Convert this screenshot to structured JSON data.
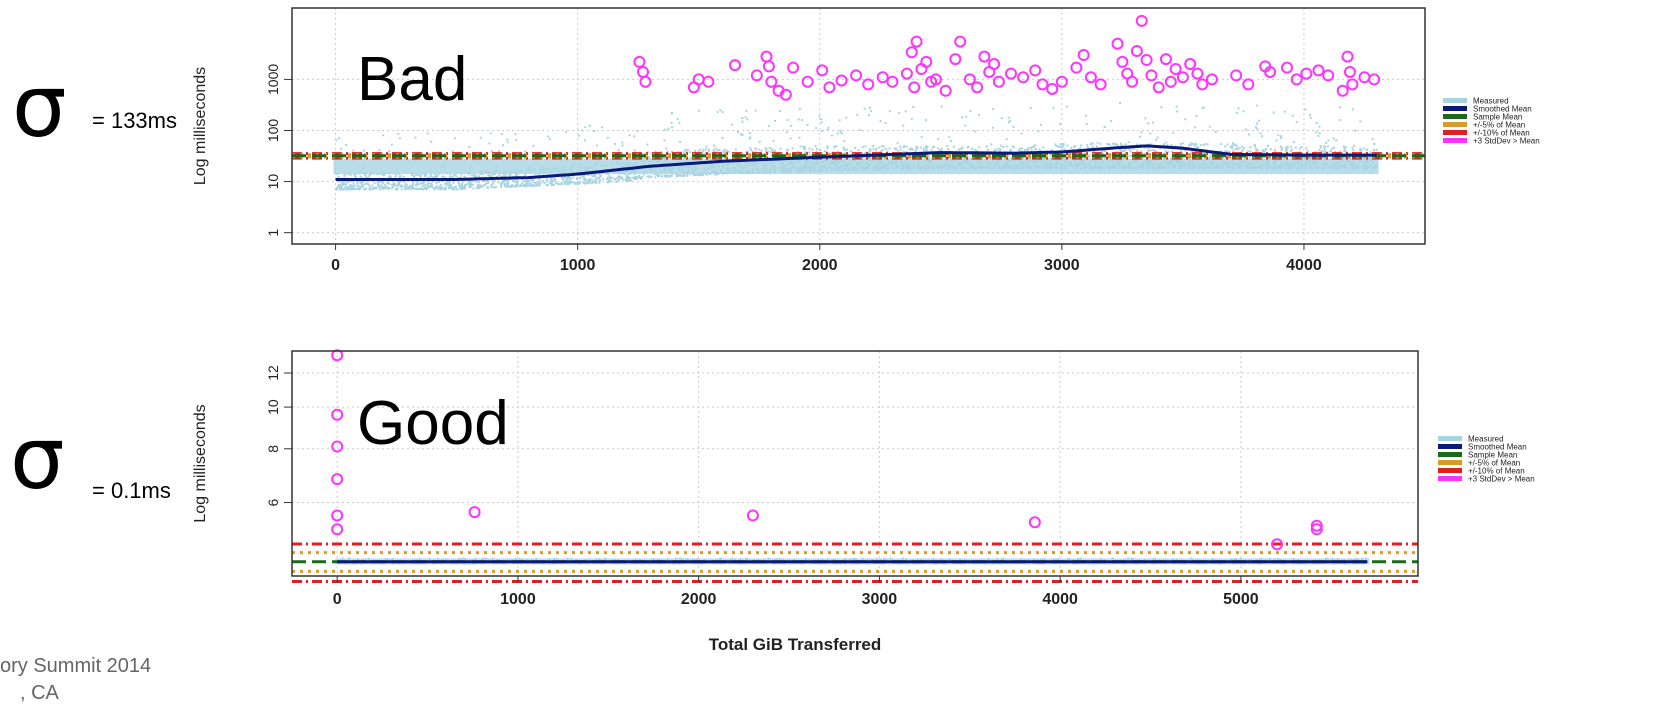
{
  "annotations": {
    "sigma_symbol": "σ",
    "bad_sigma": "= 133ms",
    "good_sigma": "= 0.1ms",
    "footer_line1": "ory Summit 2014",
    "footer_line2": ", CA"
  },
  "colors": {
    "measured": "#a8d4e2",
    "smoothed": "#0a1a7a",
    "sample": "#1a6a1a",
    "pm5": "#d89a2a",
    "pm10": "#e02020",
    "outlier": "#ff33ff"
  },
  "legend": [
    {
      "label": "Measured",
      "key": "measured"
    },
    {
      "label": "Smoothed Mean",
      "key": "smoothed"
    },
    {
      "label": "Sample Mean",
      "key": "sample"
    },
    {
      "label": "+/-5% of Mean",
      "key": "pm5"
    },
    {
      "label": "+/-10% of Mean",
      "key": "pm10"
    },
    {
      "label": "+3 StdDev > Mean",
      "key": "outlier"
    }
  ],
  "chart_data": [
    {
      "type": "scatter",
      "title": "Bad",
      "ylabel": "Log milliseconds",
      "xlabel": "",
      "yscale": "log",
      "grid": true,
      "legend_position": "right",
      "xlim": [
        -180,
        4500
      ],
      "ylim": [
        0.6,
        25000
      ],
      "x_ticks": [
        "0",
        "1000",
        "2000",
        "3000",
        "4000"
      ],
      "y_ticks": [
        "1",
        "10",
        "100",
        "1000"
      ],
      "sample_mean": 32,
      "smoothed_mean": {
        "x": [
          0,
          500,
          800,
          1000,
          1300,
          1600,
          2000,
          2300,
          2500,
          2800,
          3000,
          3200,
          3350,
          3500,
          3700,
          4000,
          4300
        ],
        "y": [
          11,
          11,
          12,
          14,
          20,
          25,
          30,
          34,
          37,
          36,
          38,
          45,
          50,
          45,
          34,
          33,
          33
        ]
      },
      "measured_band": {
        "x": [
          0,
          500,
          1000,
          1200,
          1300,
          1600,
          2000,
          2500,
          3000,
          3300,
          3600,
          4000,
          4300
        ],
        "low": [
          7,
          7,
          9,
          10,
          12,
          14,
          16,
          18,
          18,
          18,
          18,
          18,
          18
        ],
        "high": [
          15,
          15,
          20,
          25,
          40,
          45,
          50,
          50,
          55,
          60,
          55,
          50,
          50
        ]
      },
      "outliers": [
        {
          "x": 1255,
          "y": 2200
        },
        {
          "x": 1270,
          "y": 1400
        },
        {
          "x": 1280,
          "y": 900
        },
        {
          "x": 1480,
          "y": 700
        },
        {
          "x": 1500,
          "y": 1000
        },
        {
          "x": 1540,
          "y": 900
        },
        {
          "x": 1650,
          "y": 1900
        },
        {
          "x": 1740,
          "y": 1200
        },
        {
          "x": 1780,
          "y": 2800
        },
        {
          "x": 1790,
          "y": 1800
        },
        {
          "x": 1800,
          "y": 900
        },
        {
          "x": 1830,
          "y": 600
        },
        {
          "x": 1860,
          "y": 500
        },
        {
          "x": 1890,
          "y": 1700
        },
        {
          "x": 1950,
          "y": 900
        },
        {
          "x": 2010,
          "y": 1500
        },
        {
          "x": 2040,
          "y": 700
        },
        {
          "x": 2090,
          "y": 950
        },
        {
          "x": 2150,
          "y": 1200
        },
        {
          "x": 2200,
          "y": 800
        },
        {
          "x": 2260,
          "y": 1100
        },
        {
          "x": 2300,
          "y": 900
        },
        {
          "x": 2360,
          "y": 1300
        },
        {
          "x": 2380,
          "y": 3400
        },
        {
          "x": 2390,
          "y": 700
        },
        {
          "x": 2400,
          "y": 5500
        },
        {
          "x": 2420,
          "y": 1600
        },
        {
          "x": 2440,
          "y": 2200
        },
        {
          "x": 2460,
          "y": 900
        },
        {
          "x": 2480,
          "y": 1000
        },
        {
          "x": 2520,
          "y": 600
        },
        {
          "x": 2560,
          "y": 2500
        },
        {
          "x": 2580,
          "y": 5500
        },
        {
          "x": 2620,
          "y": 1000
        },
        {
          "x": 2650,
          "y": 700
        },
        {
          "x": 2680,
          "y": 2800
        },
        {
          "x": 2700,
          "y": 1400
        },
        {
          "x": 2720,
          "y": 2000
        },
        {
          "x": 2740,
          "y": 900
        },
        {
          "x": 2790,
          "y": 1300
        },
        {
          "x": 2840,
          "y": 1100
        },
        {
          "x": 2890,
          "y": 1500
        },
        {
          "x": 2920,
          "y": 800
        },
        {
          "x": 2960,
          "y": 650
        },
        {
          "x": 3000,
          "y": 900
        },
        {
          "x": 3060,
          "y": 1700
        },
        {
          "x": 3090,
          "y": 3000
        },
        {
          "x": 3120,
          "y": 1100
        },
        {
          "x": 3160,
          "y": 800
        },
        {
          "x": 3230,
          "y": 5000
        },
        {
          "x": 3250,
          "y": 2200
        },
        {
          "x": 3270,
          "y": 1300
        },
        {
          "x": 3290,
          "y": 900
        },
        {
          "x": 3310,
          "y": 3600
        },
        {
          "x": 3330,
          "y": 14000
        },
        {
          "x": 3350,
          "y": 2400
        },
        {
          "x": 3370,
          "y": 1200
        },
        {
          "x": 3400,
          "y": 700
        },
        {
          "x": 3430,
          "y": 2500
        },
        {
          "x": 3450,
          "y": 900
        },
        {
          "x": 3470,
          "y": 1600
        },
        {
          "x": 3500,
          "y": 1100
        },
        {
          "x": 3530,
          "y": 2000
        },
        {
          "x": 3560,
          "y": 1300
        },
        {
          "x": 3580,
          "y": 800
        },
        {
          "x": 3620,
          "y": 1000
        },
        {
          "x": 3720,
          "y": 1200
        },
        {
          "x": 3770,
          "y": 800
        },
        {
          "x": 3840,
          "y": 1800
        },
        {
          "x": 3860,
          "y": 1400
        },
        {
          "x": 3930,
          "y": 1700
        },
        {
          "x": 3970,
          "y": 1000
        },
        {
          "x": 4010,
          "y": 1300
        },
        {
          "x": 4060,
          "y": 1500
        },
        {
          "x": 4100,
          "y": 1200
        },
        {
          "x": 4160,
          "y": 600
        },
        {
          "x": 4180,
          "y": 2800
        },
        {
          "x": 4190,
          "y": 1400
        },
        {
          "x": 4200,
          "y": 800
        },
        {
          "x": 4250,
          "y": 1100
        },
        {
          "x": 4290,
          "y": 1000
        }
      ]
    },
    {
      "type": "scatter",
      "title": "Good",
      "ylabel": "Log milliseconds",
      "xlabel": "Total GiB Transferred",
      "yscale": "log",
      "grid": true,
      "legend_position": "right",
      "xlim": [
        -250,
        5980
      ],
      "ylim": [
        4.05,
        13.5
      ],
      "x_ticks": [
        "0",
        "1000",
        "2000",
        "3000",
        "4000",
        "5000"
      ],
      "y_ticks": [
        "6",
        "8",
        "10",
        "12"
      ],
      "sample_mean": 4.37,
      "smoothed_mean": {
        "x": [
          0,
          2000,
          4000,
          5700
        ],
        "y": [
          4.37,
          4.37,
          4.37,
          4.37
        ]
      },
      "measured_band": {
        "x": [
          0,
          2000,
          4000,
          5700
        ],
        "low": [
          4.33,
          4.33,
          4.33,
          4.33
        ],
        "high": [
          4.45,
          4.45,
          4.45,
          4.45
        ]
      },
      "outliers": [
        {
          "x": 0,
          "y": 13.2
        },
        {
          "x": 0,
          "y": 9.6
        },
        {
          "x": 0,
          "y": 8.1
        },
        {
          "x": 0,
          "y": 6.8
        },
        {
          "x": 0,
          "y": 5.6
        },
        {
          "x": 0,
          "y": 5.2
        },
        {
          "x": 760,
          "y": 5.7
        },
        {
          "x": 2300,
          "y": 5.6
        },
        {
          "x": 3860,
          "y": 5.4
        },
        {
          "x": 5200,
          "y": 4.8
        },
        {
          "x": 5420,
          "y": 5.3
        },
        {
          "x": 5420,
          "y": 5.2
        }
      ]
    }
  ]
}
